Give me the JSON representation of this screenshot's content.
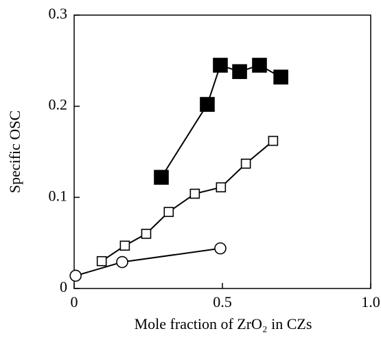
{
  "chart_data": {
    "type": "line",
    "xlabel": "Mole fraction of ZrO₂ in CZs",
    "ylabel": "Specific OSC",
    "xlim": [
      0,
      1
    ],
    "xticks": [
      0,
      0.5,
      {
        "value": 1,
        "label": "1.0"
      }
    ],
    "ylim": [
      0,
      0.3
    ],
    "yticks": [
      0,
      0.1,
      0.2,
      0.3
    ],
    "grid": false,
    "series": [
      {
        "color": "#000000",
        "marker": "square",
        "filled": true,
        "x": [
          0.294,
          0.449,
          0.493,
          0.558,
          0.625,
          0.697
        ],
        "values": [
          0.122,
          0.202,
          0.245,
          0.238,
          0.245,
          0.232
        ]
      },
      {
        "color": "#000000",
        "marker": "square",
        "filled": false,
        "x": [
          0.093,
          0.171,
          0.243,
          0.319,
          0.407,
          0.495,
          0.579,
          0.671
        ],
        "values": [
          0.03,
          0.047,
          0.06,
          0.084,
          0.104,
          0.111,
          0.137,
          0.162
        ]
      },
      {
        "color": "#000000",
        "marker": "circle",
        "filled": false,
        "x": [
          0.005,
          0.162,
          0.493
        ],
        "values": [
          0.014,
          0.029,
          0.044
        ]
      }
    ]
  }
}
